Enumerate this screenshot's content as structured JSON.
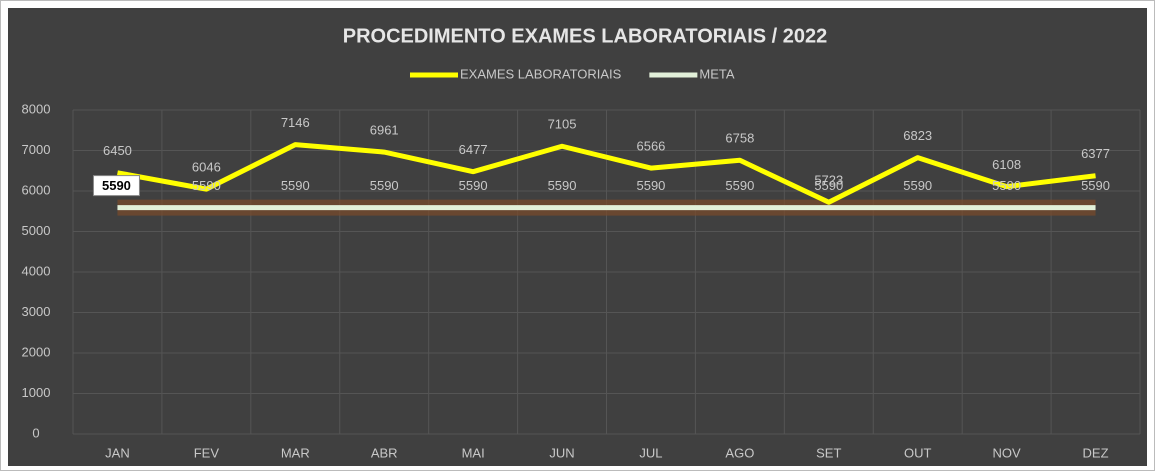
{
  "chart_data": {
    "type": "line",
    "title": "PROCEDIMENTO EXAMES LABORATORIAIS / 2022",
    "categories": [
      "JAN",
      "FEV",
      "MAR",
      "ABR",
      "MAI",
      "JUN",
      "JUL",
      "AGO",
      "SET",
      "OUT",
      "NOV",
      "DEZ"
    ],
    "series": [
      {
        "name": "EXAMES LABORATORIAIS",
        "color": "#ffff00",
        "values": [
          6450,
          6046,
          7146,
          6961,
          6477,
          7105,
          6566,
          6758,
          5723,
          6823,
          6108,
          6377
        ]
      },
      {
        "name": "META",
        "color": "#e2f0d9",
        "values": [
          5590,
          5590,
          5590,
          5590,
          5590,
          5590,
          5590,
          5590,
          5590,
          5590,
          5590,
          5590
        ]
      }
    ],
    "ylim": [
      0,
      8000
    ],
    "yticks": [
      0,
      1000,
      2000,
      3000,
      4000,
      5000,
      6000,
      7000,
      8000
    ],
    "grid": true,
    "legend": "top"
  }
}
